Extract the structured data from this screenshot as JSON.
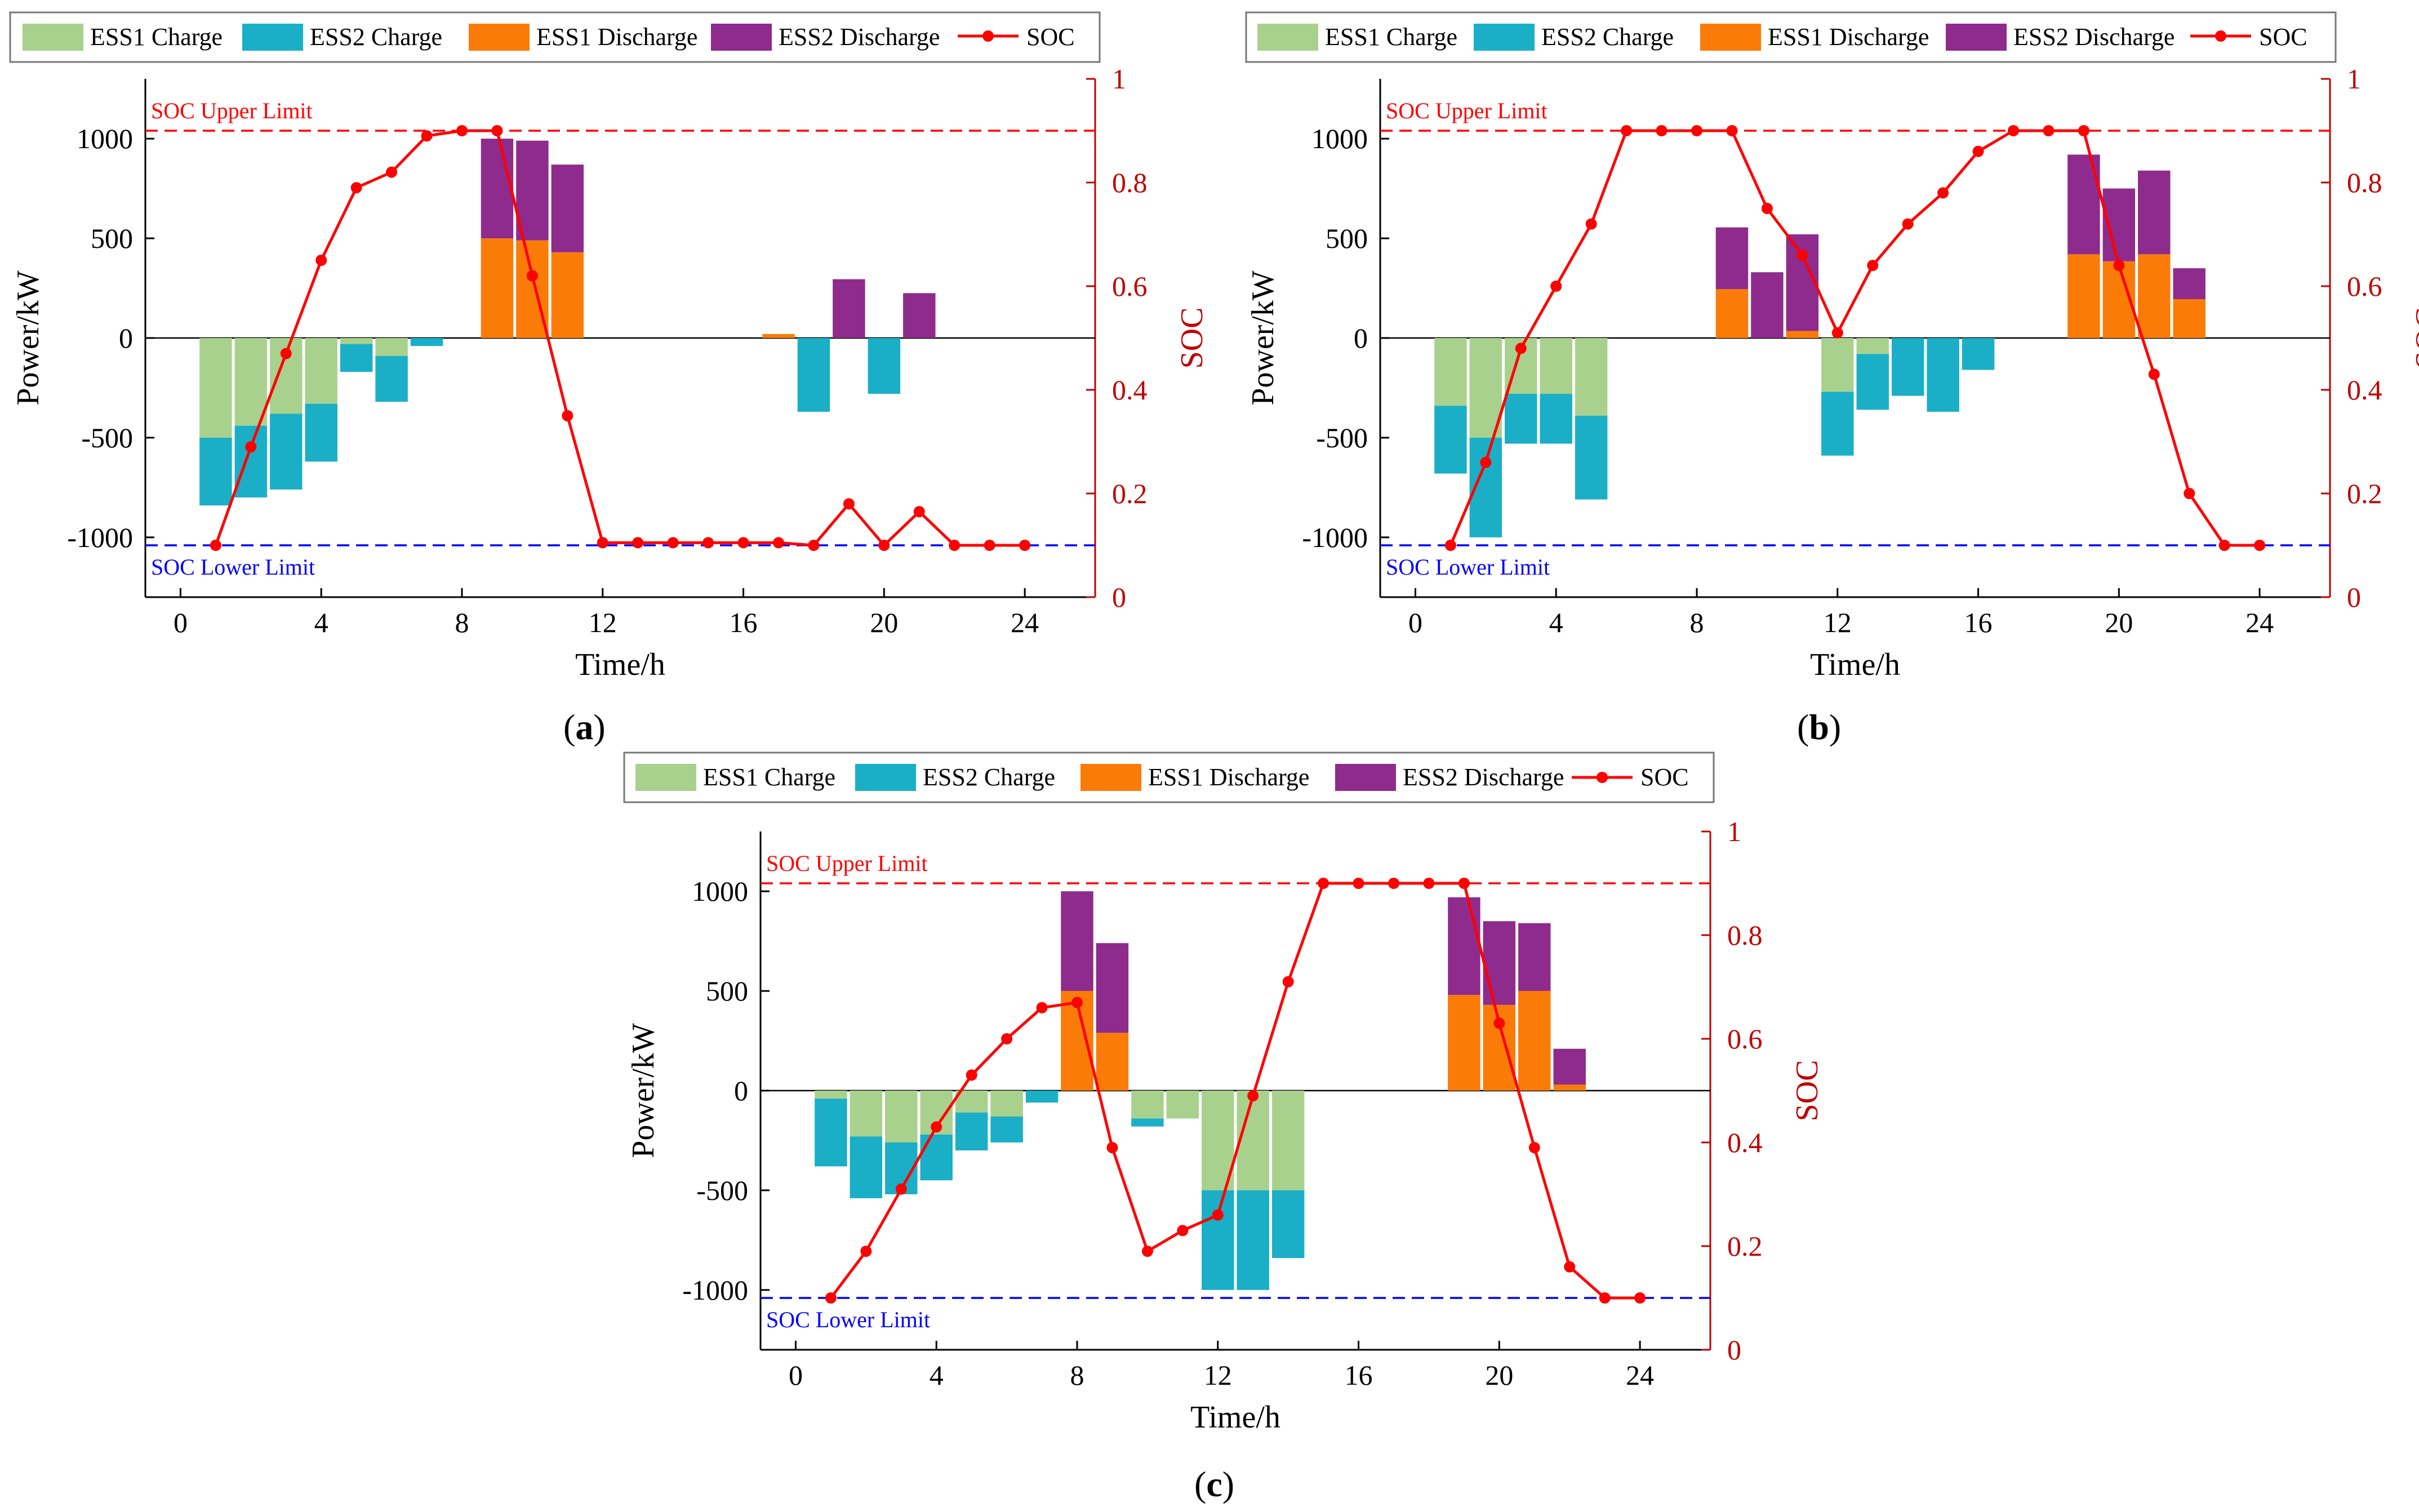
{
  "legend": {
    "ess1_charge": "ESS1 Charge",
    "ess2_charge": "ESS2 Charge",
    "ess1_discharge": "ESS1 Discharge",
    "ess2_discharge": "ESS2 Discharge",
    "soc": "SOC"
  },
  "colors": {
    "ess1_charge": "#a9d18e",
    "ess2_charge": "#1aafc6",
    "ess1_discharge": "#fb7b08",
    "ess2_discharge": "#8e2b8c",
    "soc": "#ff0000",
    "soc_axis": "#c00000",
    "upper_limit": "#ff0000",
    "lower_limit": "#0000ff"
  },
  "chart_data": [
    {
      "type": "bar",
      "caption_letter": "a",
      "xlabel": "Time/h",
      "ylabel": "Power/kW",
      "y2label": "SOC",
      "xlim": [
        -1,
        26
      ],
      "ylim": [
        -1300,
        1300
      ],
      "y2lim": [
        0,
        1
      ],
      "xticks": [
        0,
        4,
        8,
        12,
        16,
        20,
        24
      ],
      "yticks": [
        -1000,
        -500,
        0,
        500,
        1000
      ],
      "y2ticks": [
        0,
        0.2,
        0.4,
        0.6,
        0.8,
        1
      ],
      "upper_limit": {
        "label": "SOC Upper Limit",
        "value": 0.9
      },
      "lower_limit": {
        "label": "SOC Lower Limit",
        "value": 0.1
      },
      "hours": [
        1,
        2,
        3,
        4,
        5,
        6,
        7,
        8,
        9,
        10,
        11,
        12,
        13,
        14,
        15,
        16,
        17,
        18,
        19,
        20,
        21,
        22,
        23,
        24
      ],
      "ess1_charge": [
        -500,
        -440,
        -380,
        -330,
        -30,
        -90,
        0,
        0,
        0,
        0,
        0,
        0,
        0,
        0,
        0,
        0,
        0,
        0,
        0,
        0,
        0,
        0,
        0,
        0
      ],
      "ess2_charge": [
        -340,
        -360,
        -380,
        -290,
        -140,
        -230,
        -40,
        0,
        0,
        0,
        0,
        0,
        0,
        0,
        0,
        0,
        0,
        -370,
        0,
        -280,
        0,
        0,
        0,
        0
      ],
      "ess1_discharge": [
        0,
        0,
        0,
        0,
        0,
        0,
        0,
        0,
        500,
        490,
        430,
        0,
        0,
        0,
        0,
        0,
        20,
        0,
        0,
        0,
        0,
        0,
        0,
        0
      ],
      "ess2_discharge": [
        0,
        0,
        0,
        0,
        0,
        0,
        0,
        0,
        500,
        500,
        440,
        0,
        0,
        0,
        0,
        0,
        0,
        0,
        295,
        0,
        225,
        0,
        0,
        0
      ],
      "soc": [
        0.1,
        0.29,
        0.47,
        0.65,
        0.79,
        0.82,
        0.89,
        0.9,
        0.9,
        0.62,
        0.35,
        0.105,
        0.105,
        0.105,
        0.105,
        0.105,
        0.105,
        0.1,
        0.18,
        0.1,
        0.165,
        0.1,
        0.1,
        0.1
      ]
    },
    {
      "type": "bar",
      "caption_letter": "b",
      "xlabel": "Time/h",
      "ylabel": "Power/kW",
      "y2label": "SOC",
      "xlim": [
        -1,
        26
      ],
      "ylim": [
        -1300,
        1300
      ],
      "y2lim": [
        0,
        1
      ],
      "xticks": [
        0,
        4,
        8,
        12,
        16,
        20,
        24
      ],
      "yticks": [
        -1000,
        -500,
        0,
        500,
        1000
      ],
      "y2ticks": [
        0,
        0.2,
        0.4,
        0.6,
        0.8,
        1
      ],
      "upper_limit": {
        "label": "SOC Upper Limit",
        "value": 0.9
      },
      "lower_limit": {
        "label": "SOC Lower Limit",
        "value": 0.1
      },
      "hours": [
        1,
        2,
        3,
        4,
        5,
        6,
        7,
        8,
        9,
        10,
        11,
        12,
        13,
        14,
        15,
        16,
        17,
        18,
        19,
        20,
        21,
        22,
        23,
        24
      ],
      "ess1_charge": [
        -340,
        -500,
        -280,
        -280,
        -390,
        0,
        0,
        0,
        0,
        0,
        0,
        -270,
        -80,
        0,
        0,
        0,
        0,
        0,
        0,
        0,
        0,
        0,
        0,
        0
      ],
      "ess2_charge": [
        -340,
        -500,
        -250,
        -250,
        -420,
        0,
        0,
        0,
        0,
        0,
        0,
        -320,
        -280,
        -290,
        -370,
        -160,
        0,
        0,
        0,
        0,
        0,
        0,
        0,
        0
      ],
      "ess1_discharge": [
        0,
        0,
        0,
        0,
        0,
        0,
        0,
        0,
        245,
        0,
        35,
        0,
        0,
        0,
        0,
        0,
        0,
        0,
        420,
        385,
        420,
        195,
        0,
        0
      ],
      "ess2_discharge": [
        0,
        0,
        0,
        0,
        0,
        0,
        0,
        0,
        310,
        330,
        485,
        0,
        0,
        0,
        0,
        0,
        0,
        0,
        500,
        365,
        420,
        155,
        0,
        0
      ],
      "soc": [
        0.1,
        0.26,
        0.48,
        0.6,
        0.72,
        0.9,
        0.9,
        0.9,
        0.9,
        0.75,
        0.66,
        0.51,
        0.64,
        0.72,
        0.78,
        0.86,
        0.9,
        0.9,
        0.9,
        0.64,
        0.43,
        0.2,
        0.1,
        0.1
      ]
    },
    {
      "type": "bar",
      "caption_letter": "c",
      "xlabel": "Time/h",
      "ylabel": "Power/kW",
      "y2label": "SOC",
      "xlim": [
        -1,
        26
      ],
      "ylim": [
        -1300,
        1300
      ],
      "y2lim": [
        0,
        1
      ],
      "xticks": [
        0,
        4,
        8,
        12,
        16,
        20,
        24
      ],
      "yticks": [
        -1000,
        -500,
        0,
        500,
        1000
      ],
      "y2ticks": [
        0,
        0.2,
        0.4,
        0.6,
        0.8,
        1
      ],
      "upper_limit": {
        "label": "SOC Upper Limit",
        "value": 0.9
      },
      "lower_limit": {
        "label": "SOC Lower Limit",
        "value": 0.1
      },
      "hours": [
        1,
        2,
        3,
        4,
        5,
        6,
        7,
        8,
        9,
        10,
        11,
        12,
        13,
        14,
        15,
        16,
        17,
        18,
        19,
        20,
        21,
        22,
        23,
        24
      ],
      "ess1_charge": [
        -40,
        -230,
        -260,
        -220,
        -110,
        -130,
        0,
        0,
        0,
        -140,
        -140,
        -500,
        -500,
        -500,
        0,
        0,
        0,
        0,
        0,
        0,
        0,
        0,
        0,
        0
      ],
      "ess2_charge": [
        -340,
        -310,
        -260,
        -230,
        -190,
        -130,
        -60,
        0,
        0,
        -40,
        0,
        -500,
        -500,
        -340,
        0,
        0,
        0,
        0,
        0,
        0,
        0,
        0,
        0,
        0
      ],
      "ess1_discharge": [
        0,
        0,
        0,
        0,
        0,
        0,
        0,
        500,
        290,
        0,
        0,
        0,
        0,
        0,
        0,
        0,
        0,
        0,
        480,
        430,
        500,
        30,
        0,
        0
      ],
      "ess2_discharge": [
        0,
        0,
        0,
        0,
        0,
        0,
        0,
        500,
        450,
        0,
        0,
        0,
        0,
        0,
        0,
        0,
        0,
        0,
        490,
        420,
        340,
        180,
        0,
        0
      ],
      "soc": [
        0.1,
        0.19,
        0.31,
        0.43,
        0.53,
        0.6,
        0.66,
        0.67,
        0.39,
        0.19,
        0.23,
        0.26,
        0.49,
        0.71,
        0.9,
        0.9,
        0.9,
        0.9,
        0.9,
        0.63,
        0.39,
        0.16,
        0.1,
        0.1
      ]
    }
  ]
}
